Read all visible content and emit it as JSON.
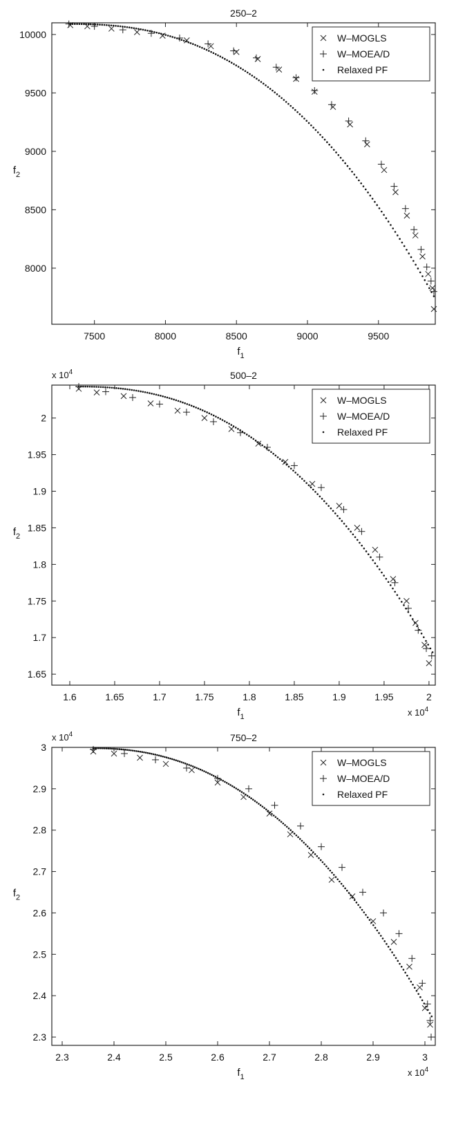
{
  "chart_data": [
    {
      "type": "scatter",
      "title": "250–2",
      "xlabel": "f",
      "xlabel_sub": "1",
      "ylabel": "f",
      "ylabel_sub": "2",
      "xlim": [
        7200,
        9900
      ],
      "ylim": [
        7520,
        10100
      ],
      "xticks": [
        7500,
        8000,
        8500,
        9000,
        9500
      ],
      "xtick_labels": [
        "7500",
        "8000",
        "8500",
        "9000",
        "9500"
      ],
      "yticks": [
        8000,
        8500,
        9000,
        9500,
        10000
      ],
      "ytick_labels": [
        "8000",
        "8500",
        "9000",
        "9500",
        "10000"
      ],
      "x_exponent_label": "",
      "y_exponent_label": "",
      "legend_position": "top-right",
      "series": [
        {
          "name": "W–MOGLS",
          "marker": "x",
          "points": [
            [
              7330,
              10080
            ],
            [
              7450,
              10070
            ],
            [
              7620,
              10050
            ],
            [
              7800,
              10020
            ],
            [
              7980,
              9990
            ],
            [
              8150,
              9950
            ],
            [
              8320,
              9900
            ],
            [
              8500,
              9850
            ],
            [
              8650,
              9790
            ],
            [
              8800,
              9700
            ],
            [
              8920,
              9620
            ],
            [
              9050,
              9510
            ],
            [
              9180,
              9380
            ],
            [
              9300,
              9230
            ],
            [
              9420,
              9060
            ],
            [
              9540,
              8840
            ],
            [
              9620,
              8650
            ],
            [
              9700,
              8450
            ],
            [
              9760,
              8280
            ],
            [
              9810,
              8100
            ],
            [
              9850,
              7950
            ],
            [
              9880,
              7830
            ],
            [
              9890,
              7650
            ]
          ]
        },
        {
          "name": "W–MOEA/D",
          "marker": "plus",
          "points": [
            [
              7320,
              10090
            ],
            [
              7500,
              10070
            ],
            [
              7700,
              10040
            ],
            [
              7900,
              10010
            ],
            [
              8100,
              9970
            ],
            [
              8300,
              9920
            ],
            [
              8480,
              9860
            ],
            [
              8640,
              9800
            ],
            [
              8780,
              9720
            ],
            [
              8920,
              9630
            ],
            [
              9050,
              9520
            ],
            [
              9170,
              9400
            ],
            [
              9290,
              9260
            ],
            [
              9410,
              9090
            ],
            [
              9520,
              8890
            ],
            [
              9610,
              8700
            ],
            [
              9690,
              8510
            ],
            [
              9750,
              8330
            ],
            [
              9800,
              8160
            ],
            [
              9840,
              8010
            ],
            [
              9870,
              7890
            ],
            [
              9890,
              7800
            ]
          ]
        },
        {
          "name": "Relaxed PF",
          "marker": "dot",
          "curve": {
            "x0": 7330,
            "x1": 9890,
            "y0": 10090,
            "y1": 7760,
            "power": 2.4,
            "n": 160
          }
        }
      ]
    },
    {
      "type": "scatter",
      "title": "500–2",
      "xlabel": "f",
      "xlabel_sub": "1",
      "ylabel": "f",
      "ylabel_sub": "2",
      "xlim": [
        1.58,
        2.007
      ],
      "ylim": [
        1.635,
        2.045
      ],
      "xticks": [
        1.6,
        1.65,
        1.7,
        1.75,
        1.8,
        1.85,
        1.9,
        1.95,
        2
      ],
      "xtick_labels": [
        "1.6",
        "1.65",
        "1.7",
        "1.75",
        "1.8",
        "1.85",
        "1.9",
        "1.95",
        "2"
      ],
      "yticks": [
        1.65,
        1.7,
        1.75,
        1.8,
        1.85,
        1.9,
        1.95,
        2
      ],
      "ytick_labels": [
        "1.65",
        "1.7",
        "1.75",
        "1.8",
        "1.85",
        "1.9",
        "1.95",
        "2"
      ],
      "x_exponent_label": "x 10",
      "x_exponent_sup": "4",
      "y_exponent_label": "x 10",
      "y_exponent_sup": "4",
      "legend_position": "top-right",
      "series": [
        {
          "name": "W–MOGLS",
          "marker": "x",
          "points": [
            [
              1.61,
              2.04
            ],
            [
              1.63,
              2.035
            ],
            [
              1.66,
              2.03
            ],
            [
              1.69,
              2.02
            ],
            [
              1.72,
              2.01
            ],
            [
              1.75,
              2.0
            ],
            [
              1.78,
              1.985
            ],
            [
              1.81,
              1.965
            ],
            [
              1.84,
              1.94
            ],
            [
              1.87,
              1.91
            ],
            [
              1.9,
              1.88
            ],
            [
              1.92,
              1.85
            ],
            [
              1.94,
              1.82
            ],
            [
              1.96,
              1.78
            ],
            [
              1.975,
              1.75
            ],
            [
              1.985,
              1.72
            ],
            [
              1.995,
              1.69
            ],
            [
              2.0,
              1.665
            ]
          ]
        },
        {
          "name": "W–MOEA/D",
          "marker": "plus",
          "points": [
            [
              1.61,
              2.043
            ],
            [
              1.64,
              2.036
            ],
            [
              1.67,
              2.028
            ],
            [
              1.7,
              2.019
            ],
            [
              1.73,
              2.008
            ],
            [
              1.76,
              1.995
            ],
            [
              1.79,
              1.98
            ],
            [
              1.82,
              1.96
            ],
            [
              1.85,
              1.935
            ],
            [
              1.88,
              1.905
            ],
            [
              1.905,
              1.875
            ],
            [
              1.925,
              1.845
            ],
            [
              1.945,
              1.81
            ],
            [
              1.962,
              1.775
            ],
            [
              1.977,
              1.74
            ],
            [
              1.988,
              1.71
            ],
            [
              1.997,
              1.685
            ],
            [
              2.003,
              1.675
            ]
          ]
        },
        {
          "name": "Relaxed PF",
          "marker": "dot",
          "curve": {
            "x0": 1.61,
            "x1": 2.004,
            "y0": 2.043,
            "y1": 1.68,
            "power": 2.3,
            "n": 160
          }
        }
      ]
    },
    {
      "type": "scatter",
      "title": "750–2",
      "xlabel": "f",
      "xlabel_sub": "1",
      "ylabel": "f",
      "ylabel_sub": "2",
      "xlim": [
        2.28,
        3.02
      ],
      "ylim": [
        2.28,
        3.0
      ],
      "xticks": [
        2.3,
        2.4,
        2.5,
        2.6,
        2.7,
        2.8,
        2.9,
        3
      ],
      "xtick_labels": [
        "2.3",
        "2.4",
        "2.5",
        "2.6",
        "2.7",
        "2.8",
        "2.9",
        "3"
      ],
      "yticks": [
        2.3,
        2.4,
        2.5,
        2.6,
        2.7,
        2.8,
        2.9,
        3
      ],
      "ytick_labels": [
        "2.3",
        "2.4",
        "2.5",
        "2.6",
        "2.7",
        "2.8",
        "2.9",
        "3"
      ],
      "x_exponent_label": "x 10",
      "x_exponent_sup": "4",
      "y_exponent_label": "x 10",
      "y_exponent_sup": "4",
      "legend_position": "top-right",
      "series": [
        {
          "name": "W–MOGLS",
          "marker": "x",
          "points": [
            [
              2.36,
              2.99
            ],
            [
              2.4,
              2.985
            ],
            [
              2.45,
              2.975
            ],
            [
              2.5,
              2.96
            ],
            [
              2.55,
              2.945
            ],
            [
              2.6,
              2.915
            ],
            [
              2.65,
              2.88
            ],
            [
              2.7,
              2.84
            ],
            [
              2.74,
              2.79
            ],
            [
              2.78,
              2.74
            ],
            [
              2.82,
              2.68
            ],
            [
              2.86,
              2.64
            ],
            [
              2.9,
              2.58
            ],
            [
              2.94,
              2.53
            ],
            [
              2.97,
              2.47
            ],
            [
              2.99,
              2.42
            ],
            [
              3.0,
              2.37
            ],
            [
              3.01,
              2.33
            ]
          ]
        },
        {
          "name": "W–MOEA/D",
          "marker": "plus",
          "points": [
            [
              2.36,
              2.995
            ],
            [
              2.42,
              2.985
            ],
            [
              2.48,
              2.97
            ],
            [
              2.54,
              2.95
            ],
            [
              2.6,
              2.925
            ],
            [
              2.66,
              2.9
            ],
            [
              2.71,
              2.86
            ],
            [
              2.76,
              2.81
            ],
            [
              2.8,
              2.76
            ],
            [
              2.84,
              2.71
            ],
            [
              2.88,
              2.65
            ],
            [
              2.92,
              2.6
            ],
            [
              2.95,
              2.55
            ],
            [
              2.975,
              2.49
            ],
            [
              2.995,
              2.43
            ],
            [
              3.005,
              2.38
            ],
            [
              3.01,
              2.34
            ],
            [
              3.012,
              2.3
            ]
          ]
        },
        {
          "name": "Relaxed PF",
          "marker": "dot",
          "curve": {
            "x0": 2.36,
            "x1": 3.013,
            "y0": 2.998,
            "y1": 2.35,
            "power": 2.2,
            "n": 180
          }
        }
      ]
    }
  ]
}
